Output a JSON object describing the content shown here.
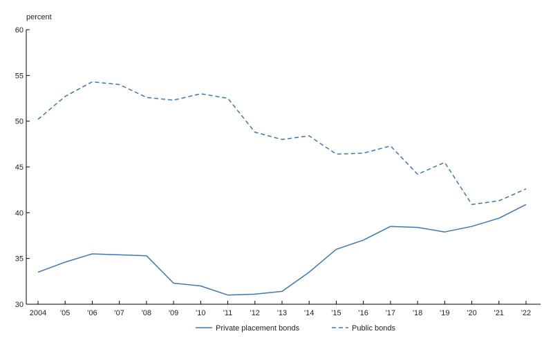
{
  "chart_data": {
    "type": "line",
    "ylabel": "percent",
    "xlabel": "",
    "ylim": [
      30,
      60
    ],
    "yticks": [
      30,
      35,
      40,
      45,
      50,
      55,
      60
    ],
    "categories": [
      "2004",
      "'05",
      "'06",
      "'07",
      "'08",
      "'09",
      "'10",
      "'11",
      "'12",
      "'13",
      "'14",
      "'15",
      "'16",
      "'17",
      "'18",
      "'19",
      "'20",
      "'21",
      "'22"
    ],
    "grid": false,
    "legend_position": "bottom",
    "series": [
      {
        "name": "Private placement bonds",
        "style": "solid",
        "color": "#3a78b5",
        "values": [
          33.5,
          34.6,
          35.5,
          35.4,
          35.3,
          32.3,
          32.0,
          31.0,
          31.1,
          31.4,
          33.5,
          36.0,
          37.0,
          38.5,
          38.4,
          37.9,
          38.5,
          39.4,
          40.9
        ]
      },
      {
        "name": "Public bonds",
        "style": "dashed",
        "color": "#3a78b5",
        "values": [
          50.2,
          52.7,
          54.3,
          54.0,
          52.6,
          52.3,
          53.0,
          52.5,
          48.8,
          48.0,
          48.4,
          46.4,
          46.5,
          47.3,
          44.2,
          45.5,
          40.9,
          41.3,
          42.6
        ]
      }
    ]
  }
}
